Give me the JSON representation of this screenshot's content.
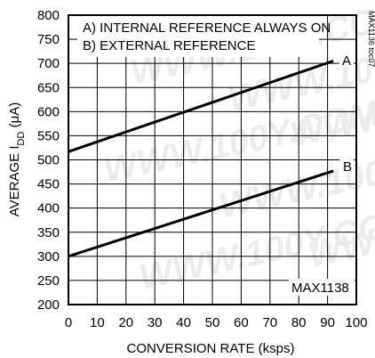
{
  "chart_data": {
    "type": "line",
    "x": [
      0,
      92
    ],
    "series": [
      {
        "name": "A",
        "values": [
          517,
          705
        ]
      },
      {
        "name": "B",
        "values": [
          300,
          477
        ]
      }
    ],
    "xlabel": "CONVERSION RATE (ksps)",
    "ylabel": {
      "prefix": "AVERAGE I",
      "sub": "DD",
      "suffix": " (μA)"
    },
    "xlim": [
      0,
      100
    ],
    "ylim": [
      200,
      800
    ],
    "xticks": [
      "0",
      "10",
      "20",
      "30",
      "40",
      "50",
      "60",
      "70",
      "80",
      "90",
      "100"
    ],
    "yticks": [
      "200",
      "250",
      "300",
      "350",
      "400",
      "450",
      "500",
      "550",
      "600",
      "650",
      "700",
      "750",
      "800"
    ],
    "grid": true,
    "legend": [
      "A) INTERNAL REFERENCE ALWAYS ON",
      "B) EXTERNAL REFERENCE"
    ],
    "part_label": "MAX1138",
    "figure_id": "MAX1136 toc07",
    "watermark": "WWW.100Y.COM.TW",
    "colors": {
      "line": "#000000",
      "grid": "#000000",
      "background": "#ffffff"
    }
  }
}
